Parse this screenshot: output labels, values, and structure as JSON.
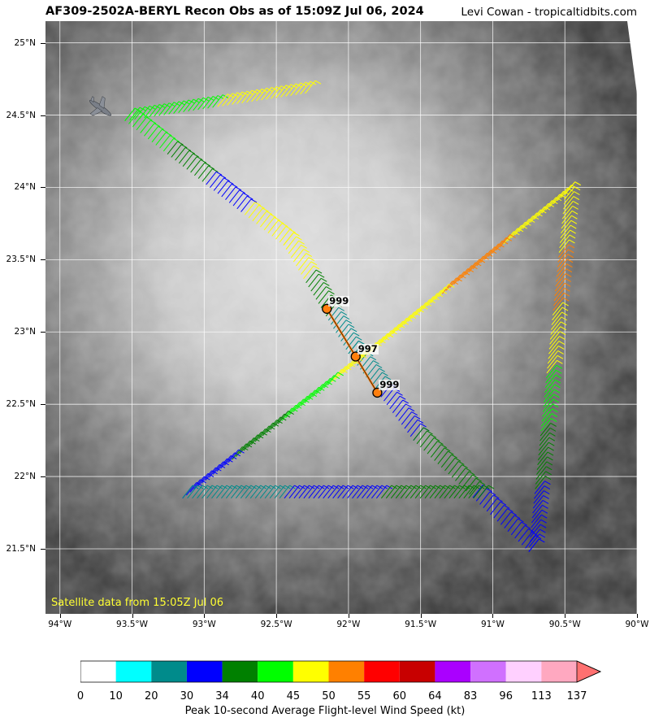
{
  "header": {
    "title": "AF309-2502A-BERYL Recon Obs as of 15:09Z Jul 06, 2024",
    "credit": "Levi Cowan - tropicaltidbits.com"
  },
  "map": {
    "satellite_note": "Satellite data from 15:05Z Jul 06",
    "lon_range": [
      -94.1,
      -90.0
    ],
    "lat_range": [
      21.05,
      25.15
    ],
    "x_ticks": [
      "94°W",
      "93.5°W",
      "93°W",
      "92.5°W",
      "92°W",
      "91.5°W",
      "91°W",
      "90.5°W",
      "90°W"
    ],
    "x_tick_values": [
      -94.0,
      -93.5,
      -93.0,
      -92.5,
      -92.0,
      -91.5,
      -91.0,
      -90.5,
      -90.0
    ],
    "y_ticks": [
      "25°N",
      "24.5°N",
      "24°N",
      "23.5°N",
      "23°N",
      "22.5°N",
      "22°N",
      "21.5°N"
    ],
    "y_tick_values": [
      25.0,
      24.5,
      24.0,
      23.5,
      23.0,
      22.5,
      22.0,
      21.5
    ]
  },
  "dropsondes": [
    {
      "label": "999",
      "lon": -92.15,
      "lat": 23.16
    },
    {
      "label": "997",
      "lon": -91.95,
      "lat": 22.83
    },
    {
      "label": "999",
      "lon": -91.8,
      "lat": 22.58
    }
  ],
  "flight_legs": [
    {
      "from": [
        -93.55,
        24.46
      ],
      "to": [
        -92.3,
        24.65
      ],
      "winds": [
        40,
        45
      ]
    },
    {
      "from": [
        -93.55,
        24.46
      ],
      "to": [
        -92.45,
        23.6
      ],
      "winds": [
        40,
        34,
        30,
        45
      ]
    },
    {
      "from": [
        -92.45,
        23.6
      ],
      "to": [
        -92.0,
        22.85
      ],
      "winds": [
        45,
        34,
        20
      ]
    },
    {
      "from": [
        -92.0,
        22.85
      ],
      "to": [
        -91.55,
        22.25
      ],
      "winds": [
        20,
        30
      ]
    },
    {
      "from": [
        -91.55,
        22.25
      ],
      "to": [
        -90.75,
        21.48
      ],
      "winds": [
        34,
        30
      ]
    },
    {
      "from": [
        -90.75,
        21.48
      ],
      "to": [
        -90.5,
        23.95
      ],
      "winds": [
        30,
        34,
        40,
        45,
        50,
        45
      ]
    },
    {
      "from": [
        -90.5,
        23.95
      ],
      "to": [
        -91.8,
        22.9
      ],
      "winds": [
        45,
        50,
        45
      ]
    },
    {
      "from": [
        -91.8,
        22.9
      ],
      "to": [
        -93.15,
        21.85
      ],
      "winds": [
        45,
        40,
        34,
        30
      ]
    },
    {
      "from": [
        -93.15,
        21.85
      ],
      "to": [
        -91.1,
        21.85
      ],
      "winds": [
        20,
        30,
        34
      ]
    }
  ],
  "colorbar": {
    "title": "Peak 10-second Average Flight-level Wind Speed (kt)",
    "labels": [
      "0",
      "10",
      "20",
      "30",
      "34",
      "40",
      "45",
      "50",
      "55",
      "60",
      "64",
      "83",
      "96",
      "113",
      "137"
    ],
    "colors": [
      "#ffffff",
      "#00ffff",
      "#008b8b",
      "#0000ff",
      "#008000",
      "#00ff00",
      "#ffff00",
      "#ff8000",
      "#ff0000",
      "#c80000",
      "#aa00ff",
      "#d070ff",
      "#ffd0ff",
      "#ffa8c0"
    ],
    "arrow_color": "#ff7070"
  }
}
